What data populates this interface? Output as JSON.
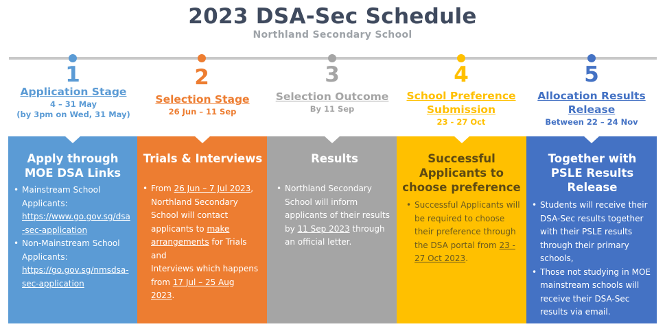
{
  "header": {
    "title": "2023 DSA-Sec Schedule",
    "subtitle": "Northland Secondary School"
  },
  "colors": {
    "blue": "#5b9bd5",
    "orange": "#ed7d31",
    "gray": "#a5a5a5",
    "yellow": "#ffc000",
    "darkblue": "#4472c4"
  },
  "stages": [
    {
      "num": "1",
      "name": "Application Stage",
      "date1": "4 – 31 May",
      "date2": "(by 3pm on Wed, 31 May)"
    },
    {
      "num": "2",
      "name": "Selection Stage",
      "date1": "26 Jun – 11 Sep"
    },
    {
      "num": "3",
      "name": "Selection Outcome",
      "date1": "By 11 Sep"
    },
    {
      "num": "4",
      "name1": "School Preference",
      "name2": "Submission",
      "date1": "23 - 27 Oct"
    },
    {
      "num": "5",
      "name1": "Allocation Results",
      "name2": "Release",
      "date1": "Between 22 – 24 Nov"
    }
  ],
  "cards": {
    "c1": {
      "heading1": "Apply through",
      "heading2": "MOE DSA Links",
      "b1_label1": "Mainstream School",
      "b1_label2": "Applicants:",
      "b1_link1": "https://www.go.gov.sg/dsa",
      "b1_link2": "-sec-application",
      "b2_label1": "Non-Mainstream School",
      "b2_label2": "Applicants:",
      "b2_link1": "https://go.gov.sg/nmsdsa-",
      "b2_link2": "sec-application"
    },
    "c2": {
      "heading": "Trials & Interviews",
      "l1a": "From ",
      "l1b": "26 Jun – 7 Jul 2023",
      "l1c": ",",
      "l2": "Northland Secondary",
      "l3": "School will contact",
      "l4a": "applicants to ",
      "l4b": "make",
      "l5a": "arrangements",
      "l5b": " for Trials and",
      "l6": "Interviews which happens",
      "l7a": "from ",
      "l7b": "17 Jul – 25 Aug",
      "l8a": "2023",
      "l8b": "."
    },
    "c3": {
      "heading": "Results",
      "l1": "Northland Secondary",
      "l2": "School will inform",
      "l3": "applicants of their results",
      "l4a": "by ",
      "l4b": "11 Sep 2023",
      "l4c": " through",
      "l5": "an official letter."
    },
    "c4": {
      "heading1": "Successful",
      "heading2": "Applicants to",
      "heading3": "choose preference",
      "l1": "Successful Applicants will",
      "l2": "be required to choose",
      "l3": "their preference through",
      "l4a": "the DSA portal from ",
      "l4b": "23 -",
      "l5a": "27 Oct 2023",
      "l5b": "."
    },
    "c5": {
      "heading1": "Together with",
      "heading2": "PSLE Results",
      "heading3": "Release",
      "b1l1": "Students will receive their",
      "b1l2": "DSA-Sec results together",
      "b1l3": "with their PSLE results",
      "b1l4": "through their primary",
      "b1l5": "schools,",
      "b2l1": "Those not studying in MOE",
      "b2l2": "mainstream schools will",
      "b2l3": "receive their DSA-Sec",
      "b2l4": "results via email."
    }
  }
}
